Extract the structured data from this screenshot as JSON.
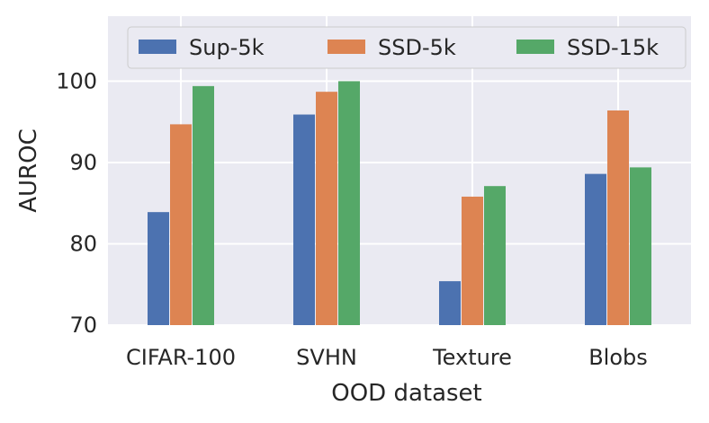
{
  "chart_data": {
    "type": "bar",
    "title": "",
    "xlabel": "OOD dataset",
    "ylabel": "AUROC",
    "categories": [
      "CIFAR-100",
      "SVHN",
      "Texture",
      "Blobs"
    ],
    "series": [
      {
        "name": "Sup-5k",
        "color": "#4c72b0",
        "values": [
          83.9,
          95.9,
          75.4,
          88.6
        ]
      },
      {
        "name": "SSD-5k",
        "color": "#dd8452",
        "values": [
          94.7,
          98.7,
          85.8,
          96.4
        ]
      },
      {
        "name": "SSD-15k",
        "color": "#55a868",
        "values": [
          99.4,
          100.0,
          87.1,
          89.4
        ]
      }
    ],
    "ylim": [
      70,
      108
    ],
    "yticks": [
      70,
      80,
      90,
      100
    ],
    "grid": true,
    "legend_position": "top"
  }
}
